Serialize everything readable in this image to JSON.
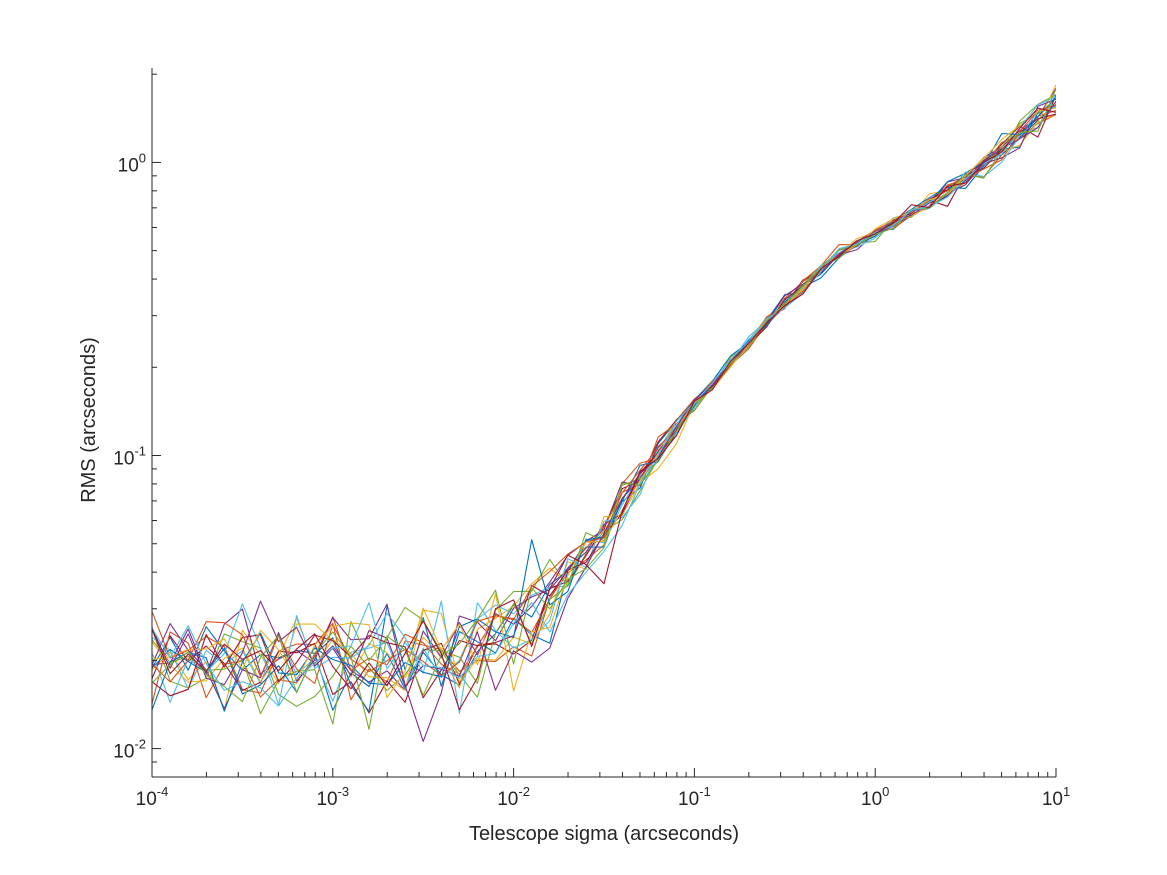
{
  "chart_data": {
    "type": "line",
    "title": "",
    "xlabel": "Telescope sigma (arcseconds)",
    "ylabel": "RMS (arcseconds)",
    "xscale": "log",
    "yscale": "log",
    "xlim": [
      0.0001,
      10
    ],
    "ylim": [
      0.008,
      2.1
    ],
    "grid": false,
    "legend": "none",
    "x_ticks": [
      {
        "value": 0.0001,
        "base": "10",
        "exp": "-4"
      },
      {
        "value": 0.001,
        "base": "10",
        "exp": "-3"
      },
      {
        "value": 0.01,
        "base": "10",
        "exp": "-2"
      },
      {
        "value": 0.1,
        "base": "10",
        "exp": "-1"
      },
      {
        "value": 1,
        "base": "10",
        "exp": "0"
      },
      {
        "value": 10,
        "base": "10",
        "exp": "1"
      }
    ],
    "y_ticks": [
      {
        "value": 0.01,
        "base": "10",
        "exp": "-2"
      },
      {
        "value": 0.1,
        "base": "10",
        "exp": "-1"
      },
      {
        "value": 1,
        "base": "10",
        "exp": "0"
      }
    ],
    "num_points": 51,
    "x_log10_range": [
      -4,
      1
    ],
    "mean_curve": {
      "x": [
        0.0001,
        0.001,
        0.003,
        0.006,
        0.01,
        0.02,
        0.04,
        0.1,
        0.3,
        0.6,
        1,
        3,
        10
      ],
      "y": [
        0.02,
        0.02,
        0.02,
        0.022,
        0.026,
        0.037,
        0.07,
        0.15,
        0.32,
        0.48,
        0.57,
        0.85,
        1.6
      ]
    },
    "series_colors": [
      "#0072bd",
      "#d95319",
      "#edb120",
      "#7e2f8e",
      "#77ac30",
      "#4dbeee",
      "#a2142f",
      "#0072bd",
      "#d95319",
      "#edb120",
      "#7e2f8e",
      "#77ac30",
      "#4dbeee",
      "#a2142f",
      "#0072bd",
      "#d95319",
      "#edb120",
      "#7e2f8e",
      "#77ac30",
      "#4dbeee",
      "#a2142f"
    ]
  }
}
